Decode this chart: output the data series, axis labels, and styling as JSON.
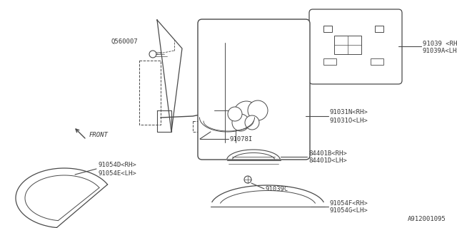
{
  "bg_color": "#ffffff",
  "line_color": "#4a4a4a",
  "text_color": "#3a3a3a",
  "diagram_id": "A912001095",
  "figsize": [
    6.4,
    3.2
  ],
  "dpi": 100,
  "xlim": [
    0,
    640
  ],
  "ylim": [
    0,
    320
  ],
  "font_size": 6.5,
  "font_family": "monospace"
}
